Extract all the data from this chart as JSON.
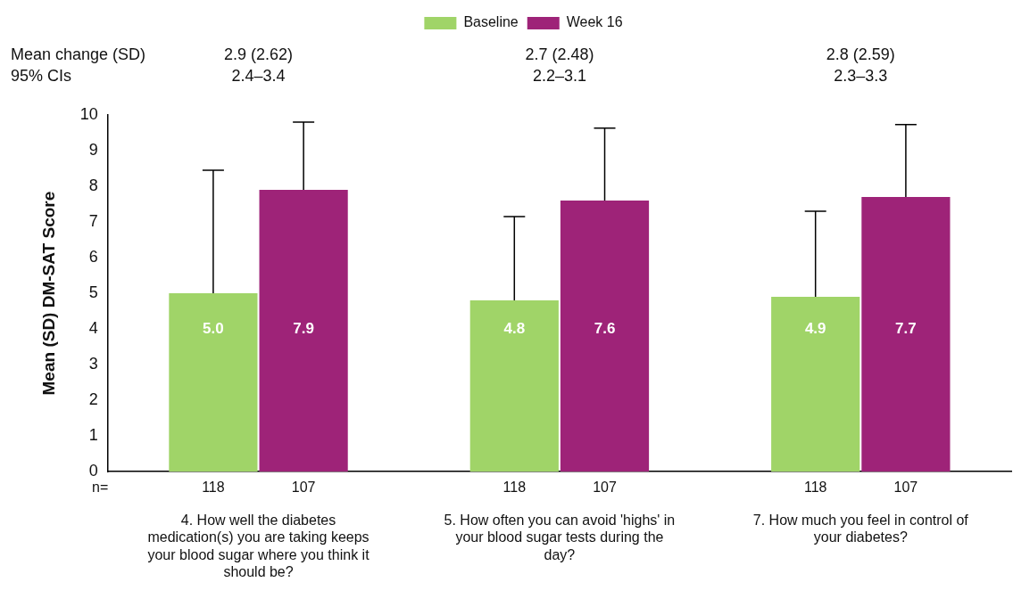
{
  "chart_data": {
    "type": "bar",
    "ylabel": "Mean (SD) DM-SAT Score",
    "categories": [
      "4. How well the diabetes medication(s) you are taking keeps your blood sugar where you think it should be?",
      "5. How often you can avoid 'highs' in your blood sugar tests during the day?",
      "7. How much you feel in control of your diabetes?"
    ],
    "series": [
      {
        "name": "Baseline",
        "color": "#a0d468",
        "values": [
          5.0,
          4.8,
          4.9
        ],
        "value_labels": [
          "5.0",
          "4.8",
          "4.9"
        ],
        "errors": [
          [
            5.0,
            8.45
          ],
          [
            4.8,
            7.15
          ],
          [
            4.9,
            7.3
          ]
        ]
      },
      {
        "name": "Week 16",
        "color": "#9e2378",
        "values": [
          7.9,
          7.6,
          7.7
        ],
        "value_labels": [
          "7.9",
          "7.6",
          "7.7"
        ],
        "errors": [
          [
            7.9,
            9.8
          ],
          [
            7.6,
            9.63
          ],
          [
            7.7,
            9.73
          ]
        ]
      }
    ],
    "ylim": [
      0,
      10
    ],
    "yticks": [
      0,
      1,
      2,
      3,
      4,
      5,
      6,
      7,
      8,
      9,
      10
    ],
    "grid": false,
    "legend": "top",
    "annotations": [
      "Mean change (SD)",
      "95% CIs",
      "2.9 (2.62)",
      "2.4–3.4",
      "2.7 (2.48)",
      "2.2–3.1",
      "2.8 (2.59)",
      "2.3–3.3",
      "n=",
      "118",
      "107",
      "118",
      "107",
      "118",
      "107"
    ]
  }
}
